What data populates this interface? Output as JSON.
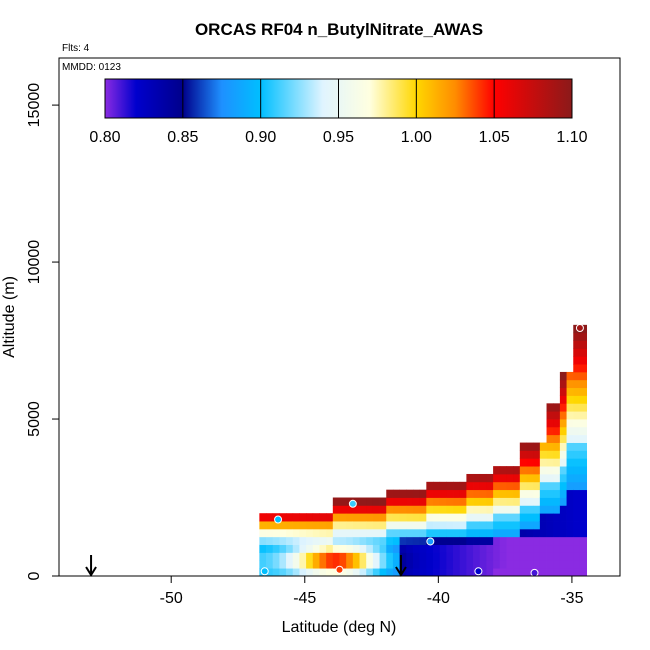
{
  "chart_data": {
    "type": "heatmap",
    "title": "ORCAS RF04 n_ButylNitrate_AWAS",
    "annotations": {
      "flights": "Flts: 4",
      "date": "MMDD: 0123"
    },
    "xlabel": "Latitude (deg N)",
    "ylabel": "Altitude (m)",
    "xlim": [
      -54.2,
      -33.2
    ],
    "ylim": [
      0,
      16500
    ],
    "x_ticks": [
      -50,
      -45,
      -40,
      -35
    ],
    "y_ticks": [
      0,
      5000,
      10000,
      15000
    ],
    "grid": false,
    "colorbar": {
      "placement": "top-inset",
      "range": [
        0.8,
        1.1
      ],
      "ticks": [
        0.8,
        0.85,
        0.9,
        0.95,
        1.0,
        1.05,
        1.1
      ],
      "tick_labels": [
        "0.80",
        "0.85",
        "0.90",
        "0.95",
        "1.00",
        "1.05",
        "1.10"
      ],
      "stops": [
        {
          "value": 0.8,
          "color": "#8a2be2"
        },
        {
          "value": 0.82,
          "color": "#0000cd"
        },
        {
          "value": 0.85,
          "color": "#00008b"
        },
        {
          "value": 0.875,
          "color": "#1e90ff"
        },
        {
          "value": 0.9,
          "color": "#00bfff"
        },
        {
          "value": 0.94,
          "color": "#e0f4ff"
        },
        {
          "value": 0.97,
          "color": "#ffffe0"
        },
        {
          "value": 1.0,
          "color": "#ffd700"
        },
        {
          "value": 1.025,
          "color": "#ff8c00"
        },
        {
          "value": 1.05,
          "color": "#ff0000"
        },
        {
          "value": 1.1,
          "color": "#8b1a1a"
        }
      ]
    },
    "field_domain": {
      "lat_min": -46.7,
      "lat_max": -34.6,
      "alt_max_at_lat_max": 7900,
      "alt_max_at_lat_min": 2000
    },
    "samples": [
      {
        "lat": -46.5,
        "alt": 150,
        "value": 0.9
      },
      {
        "lat": -46.0,
        "alt": 1800,
        "value": 0.9
      },
      {
        "lat": -43.7,
        "alt": 200,
        "value": 1.04
      },
      {
        "lat": -43.2,
        "alt": 2300,
        "value": 0.91
      },
      {
        "lat": -40.3,
        "alt": 1100,
        "value": 0.88
      },
      {
        "lat": -38.5,
        "alt": 150,
        "value": 0.82
      },
      {
        "lat": -36.4,
        "alt": 100,
        "value": 0.81
      },
      {
        "lat": -34.7,
        "alt": 7900,
        "value": 1.09
      }
    ],
    "markers": [
      {
        "type": "down-arrow",
        "lat": -53.0
      },
      {
        "type": "down-arrow",
        "lat": -41.4
      }
    ]
  }
}
